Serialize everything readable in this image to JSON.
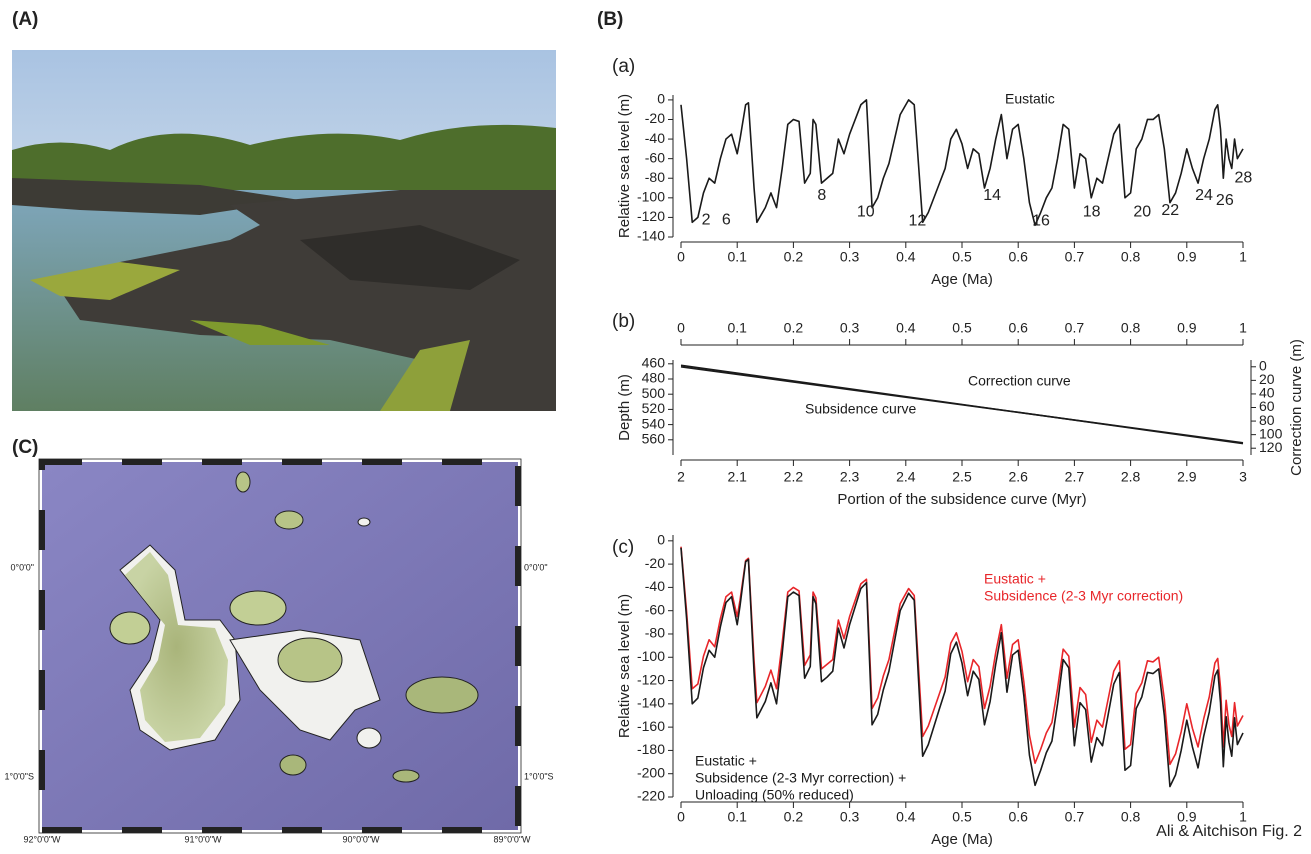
{
  "panel_labels": {
    "A": "(A)",
    "B": "(B)",
    "C": "(C)"
  },
  "map": {
    "lon_labels": [
      "92°0'0\"W",
      "91°0'0\"W",
      "90°0'0\"W",
      "89°0'0\"W"
    ],
    "lat_labels": [
      "0°0'0\"",
      "1°0'0\"S"
    ]
  },
  "credit": "Ali & Aitchison Fig. 2",
  "chart_data": [
    {
      "type": "line",
      "panel": "(a)",
      "x": [
        0,
        0.01,
        0.02,
        0.03,
        0.04,
        0.05,
        0.06,
        0.07,
        0.08,
        0.09,
        0.1,
        0.105,
        0.115,
        0.12,
        0.13,
        0.135,
        0.15,
        0.16,
        0.17,
        0.18,
        0.19,
        0.2,
        0.21,
        0.22,
        0.23,
        0.235,
        0.24,
        0.25,
        0.26,
        0.27,
        0.28,
        0.29,
        0.3,
        0.32,
        0.33,
        0.34,
        0.35,
        0.36,
        0.37,
        0.38,
        0.39,
        0.405,
        0.415,
        0.43,
        0.44,
        0.46,
        0.47,
        0.48,
        0.49,
        0.5,
        0.51,
        0.52,
        0.53,
        0.54,
        0.55,
        0.56,
        0.57,
        0.58,
        0.59,
        0.6,
        0.61,
        0.62,
        0.63,
        0.64,
        0.65,
        0.66,
        0.67,
        0.68,
        0.69,
        0.7,
        0.71,
        0.72,
        0.73,
        0.74,
        0.75,
        0.77,
        0.78,
        0.79,
        0.8,
        0.81,
        0.82,
        0.83,
        0.84,
        0.85,
        0.86,
        0.87,
        0.88,
        0.89,
        0.9,
        0.91,
        0.92,
        0.93,
        0.94,
        0.95,
        0.955,
        0.96,
        0.965,
        0.97,
        0.975,
        0.98,
        0.985,
        0.99,
        1
      ],
      "xlim": [
        0,
        1
      ],
      "xticks": [
        0,
        0.1,
        0.2,
        0.3,
        0.4,
        0.5,
        0.6,
        0.7,
        0.8,
        0.9,
        1
      ],
      "xlabel": "Age (Ma)",
      "ylabel": "Relative sea level (m)",
      "ylim": [
        -140,
        5
      ],
      "yticks": [
        0,
        -20,
        -40,
        -60,
        -80,
        -100,
        -120,
        -140
      ],
      "series": [
        {
          "color": "#1a1a1a",
          "values": [
            -5,
            -60,
            -125,
            -120,
            -95,
            -80,
            -85,
            -60,
            -40,
            -35,
            -55,
            -40,
            -5,
            -3,
            -90,
            -125,
            -110,
            -95,
            -110,
            -70,
            -25,
            -20,
            -22,
            -85,
            -75,
            -20,
            -25,
            -85,
            -80,
            -75,
            -40,
            -55,
            -35,
            -5,
            0,
            -110,
            -100,
            -80,
            -65,
            -40,
            -15,
            0,
            -5,
            -125,
            -115,
            -85,
            -70,
            -40,
            -30,
            -45,
            -70,
            -50,
            -55,
            -90,
            -70,
            -40,
            -15,
            -60,
            -30,
            -25,
            -60,
            -105,
            -128,
            -115,
            -100,
            -90,
            -60,
            -25,
            -30,
            -90,
            -55,
            -60,
            -100,
            -80,
            -85,
            -35,
            -25,
            -100,
            -95,
            -50,
            -40,
            -20,
            -20,
            -15,
            -50,
            -105,
            -95,
            -75,
            -50,
            -70,
            -85,
            -60,
            -40,
            -10,
            -5,
            -30,
            -80,
            -40,
            -60,
            -70,
            -40,
            -60,
            -50
          ]
        }
      ],
      "annotations": [
        {
          "lines": [
            "Eustatic"
          ],
          "color": "#1a1a1a"
        }
      ],
      "stage_labels": [
        "2",
        "6",
        "8",
        "10",
        "12",
        "14",
        "16",
        "18",
        "20",
        "22",
        "24",
        "26",
        "28"
      ]
    },
    {
      "type": "line",
      "panel": "(b)",
      "x": [
        2,
        3
      ],
      "xlim": [
        2,
        3
      ],
      "xticks": [
        2,
        2.1,
        2.2,
        2.3,
        2.4,
        2.5,
        2.6,
        2.7,
        2.8,
        2.9,
        3
      ],
      "xlabel": "Portion of the subsidence curve (Myr)",
      "x2lim": [
        0,
        1
      ],
      "x2ticks": [
        0,
        0.1,
        0.2,
        0.3,
        0.4,
        0.5,
        0.6,
        0.7,
        0.8,
        0.9,
        1
      ],
      "ylabel": "Depth (m)",
      "ylim": [
        580,
        455
      ],
      "yticks": [
        460,
        480,
        500,
        520,
        540,
        560
      ],
      "y2label": "Correction curve (m)",
      "y2lim": [
        130,
        -10
      ],
      "y2ticks": [
        0,
        20,
        40,
        60,
        80,
        100,
        120
      ],
      "series": [
        {
          "color": "#1a1a1a",
          "values": [
            462,
            565
          ]
        },
        {
          "color": "#1a1a1a",
          "axis": "y2",
          "values": [
            0,
            112
          ]
        }
      ],
      "annotations": [
        {
          "lines": [
            "Correction curve"
          ],
          "color": "#1a1a1a"
        },
        {
          "lines": [
            "Subsidence curve"
          ],
          "color": "#1a1a1a"
        }
      ]
    },
    {
      "type": "line",
      "panel": "(c)",
      "x": [
        0,
        0.01,
        0.02,
        0.03,
        0.04,
        0.05,
        0.06,
        0.07,
        0.08,
        0.09,
        0.1,
        0.105,
        0.115,
        0.12,
        0.13,
        0.135,
        0.15,
        0.16,
        0.17,
        0.18,
        0.19,
        0.2,
        0.21,
        0.22,
        0.23,
        0.235,
        0.24,
        0.25,
        0.26,
        0.27,
        0.28,
        0.29,
        0.3,
        0.32,
        0.33,
        0.34,
        0.35,
        0.36,
        0.37,
        0.38,
        0.39,
        0.405,
        0.415,
        0.43,
        0.44,
        0.46,
        0.47,
        0.48,
        0.49,
        0.5,
        0.51,
        0.52,
        0.53,
        0.54,
        0.55,
        0.56,
        0.57,
        0.58,
        0.59,
        0.6,
        0.61,
        0.62,
        0.63,
        0.64,
        0.65,
        0.66,
        0.67,
        0.68,
        0.69,
        0.7,
        0.71,
        0.72,
        0.73,
        0.74,
        0.75,
        0.77,
        0.78,
        0.79,
        0.8,
        0.81,
        0.82,
        0.83,
        0.84,
        0.85,
        0.86,
        0.87,
        0.88,
        0.89,
        0.9,
        0.91,
        0.92,
        0.93,
        0.94,
        0.95,
        0.955,
        0.96,
        0.965,
        0.97,
        0.975,
        0.98,
        0.985,
        0.99,
        1
      ],
      "xlim": [
        0,
        1
      ],
      "xticks": [
        0,
        0.1,
        0.2,
        0.3,
        0.4,
        0.5,
        0.6,
        0.7,
        0.8,
        0.9,
        1
      ],
      "xlabel": "Age (Ma)",
      "ylabel": "Relative sea level (m)",
      "ylim": [
        -220,
        5
      ],
      "yticks": [
        0,
        -20,
        -40,
        -60,
        -80,
        -100,
        -120,
        -140,
        -160,
        -180,
        -200,
        -220
      ],
      "series": [
        {
          "color": "#e8262a",
          "values": [
            -5,
            -61,
            -127,
            -123,
            -99,
            -85,
            -91,
            -67,
            -48,
            -44,
            -65,
            -51,
            -17,
            -15,
            -103,
            -139,
            -125,
            -111,
            -127,
            -88,
            -44,
            -40,
            -43,
            -107,
            -98,
            -44,
            -49,
            -110,
            -106,
            -102,
            -68,
            -84,
            -65,
            -37,
            -33,
            -144,
            -135,
            -116,
            -102,
            -78,
            -54,
            -41,
            -47,
            -168,
            -159,
            -131,
            -117,
            -88,
            -79,
            -95,
            -121,
            -102,
            -108,
            -144,
            -125,
            -96,
            -72,
            -118,
            -89,
            -85,
            -121,
            -167,
            -191,
            -179,
            -165,
            -156,
            -127,
            -93,
            -99,
            -160,
            -126,
            -132,
            -173,
            -154,
            -160,
            -112,
            -103,
            -179,
            -175,
            -131,
            -122,
            -103,
            -104,
            -100,
            -136,
            -192,
            -183,
            -164,
            -140,
            -161,
            -177,
            -153,
            -134,
            -105,
            -101,
            -126,
            -177,
            -137,
            -158,
            -168,
            -139,
            -159,
            -150
          ]
        },
        {
          "color": "#1a1a1a",
          "values": [
            -6,
            -67,
            -140,
            -135,
            -109,
            -94,
            -100,
            -74,
            -53,
            -48,
            -72,
            -56,
            -18,
            -16,
            -113,
            -152,
            -138,
            -122,
            -140,
            -97,
            -48,
            -44,
            -47,
            -118,
            -108,
            -48,
            -54,
            -121,
            -117,
            -112,
            -75,
            -92,
            -72,
            -41,
            -36,
            -158,
            -149,
            -128,
            -112,
            -86,
            -60,
            -45,
            -51,
            -185,
            -175,
            -144,
            -129,
            -97,
            -87,
            -105,
            -133,
            -112,
            -119,
            -158,
            -138,
            -106,
            -79,
            -130,
            -98,
            -94,
            -133,
            -184,
            -210,
            -197,
            -182,
            -172,
            -140,
            -102,
            -109,
            -176,
            -139,
            -145,
            -190,
            -169,
            -176,
            -123,
            -113,
            -197,
            -193,
            -144,
            -134,
            -113,
            -114,
            -110,
            -150,
            -211,
            -201,
            -180,
            -154,
            -177,
            -195,
            -168,
            -147,
            -116,
            -111,
            -139,
            -194,
            -151,
            -173,
            -185,
            -152,
            -175,
            -165
          ]
        }
      ],
      "annotations": [
        {
          "lines": [
            "Eustatic +",
            "Subsidence (2-3 Myr correction)"
          ],
          "color": "#e8262a"
        },
        {
          "lines": [
            "Eustatic +",
            "Subsidence (2-3 Myr correction) +",
            "Unloading (50% reduced)"
          ],
          "color": "#1a1a1a"
        }
      ]
    }
  ]
}
